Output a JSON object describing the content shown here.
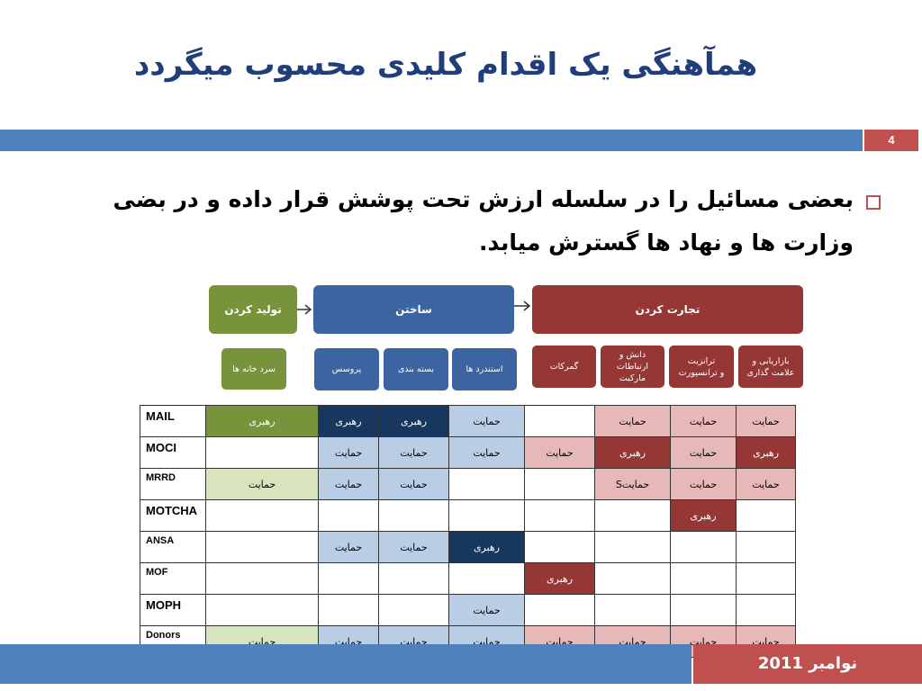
{
  "slide": {
    "title": "همآهنگی یک اقدام کلیدی محسوب میگردد",
    "number": "4",
    "bullet": "بعضی مسائیل را در سلسله ارزش تحت پوشش قرار داده و در بضی وزارت ها و نهاد ها گسترش میابد.",
    "footer_date": "نوامبر 2011"
  },
  "diagram": {
    "stages": {
      "produce": "تولید کردن",
      "build": "ساختن",
      "trade": "تجارت کردن"
    },
    "sub": {
      "cold_storage": "سرد خانه ها",
      "process": "پروسس",
      "packaging": "بسته بندی",
      "standards": "استندرد ها",
      "customs": "گمرکات",
      "market_info": "دانش و\nارتباطات\nمارکیت",
      "transit": "ترانزیت\nو ترانسپورت",
      "marketing": "بازاریابی و\nعلامت گذاری"
    }
  },
  "table": {
    "rows": [
      {
        "org": "MAIL",
        "cells": [
          "رهبری",
          "رهبری",
          "رهبری",
          "حمایت",
          "",
          "حمایت",
          "حمایت",
          "حمایت"
        ]
      },
      {
        "org": "MOCI",
        "cells": [
          "",
          "حمایت",
          "حمایت",
          "حمایت",
          "حمایت",
          "رهبری",
          "حمایت",
          "رهبری"
        ]
      },
      {
        "org": "MRRD",
        "cells": [
          "حمایت",
          "حمایت",
          "حمایت",
          "",
          "",
          "حمایتS",
          "حمایت",
          "حمایت"
        ]
      },
      {
        "org": "MOTCHA",
        "cells": [
          "",
          "",
          "",
          "",
          "",
          "",
          "رهبری",
          ""
        ]
      },
      {
        "org": "ANSA",
        "cells": [
          "",
          "حمایت",
          "حمایت",
          "رهبری",
          "",
          "",
          "",
          ""
        ]
      },
      {
        "org": "MOF",
        "cells": [
          "",
          "",
          "",
          "",
          "رهبری",
          "",
          "",
          ""
        ]
      },
      {
        "org": "MOPH",
        "cells": [
          "",
          "",
          "",
          "حمایت",
          "",
          "",
          "",
          ""
        ]
      },
      {
        "org": "Donors",
        "cells": [
          "حمایت",
          "حمایت",
          "حمایت",
          "حمایت",
          "حمایت",
          "حمایت",
          "حمایت",
          "حمایت"
        ]
      }
    ]
  },
  "colors": {
    "title": "#1f3e7a",
    "bar_blue": "#4f81bd",
    "bar_red": "#c0504d",
    "produce_green": "#77933c",
    "build_blue": "#3b64a0",
    "trade_red": "#953735"
  }
}
